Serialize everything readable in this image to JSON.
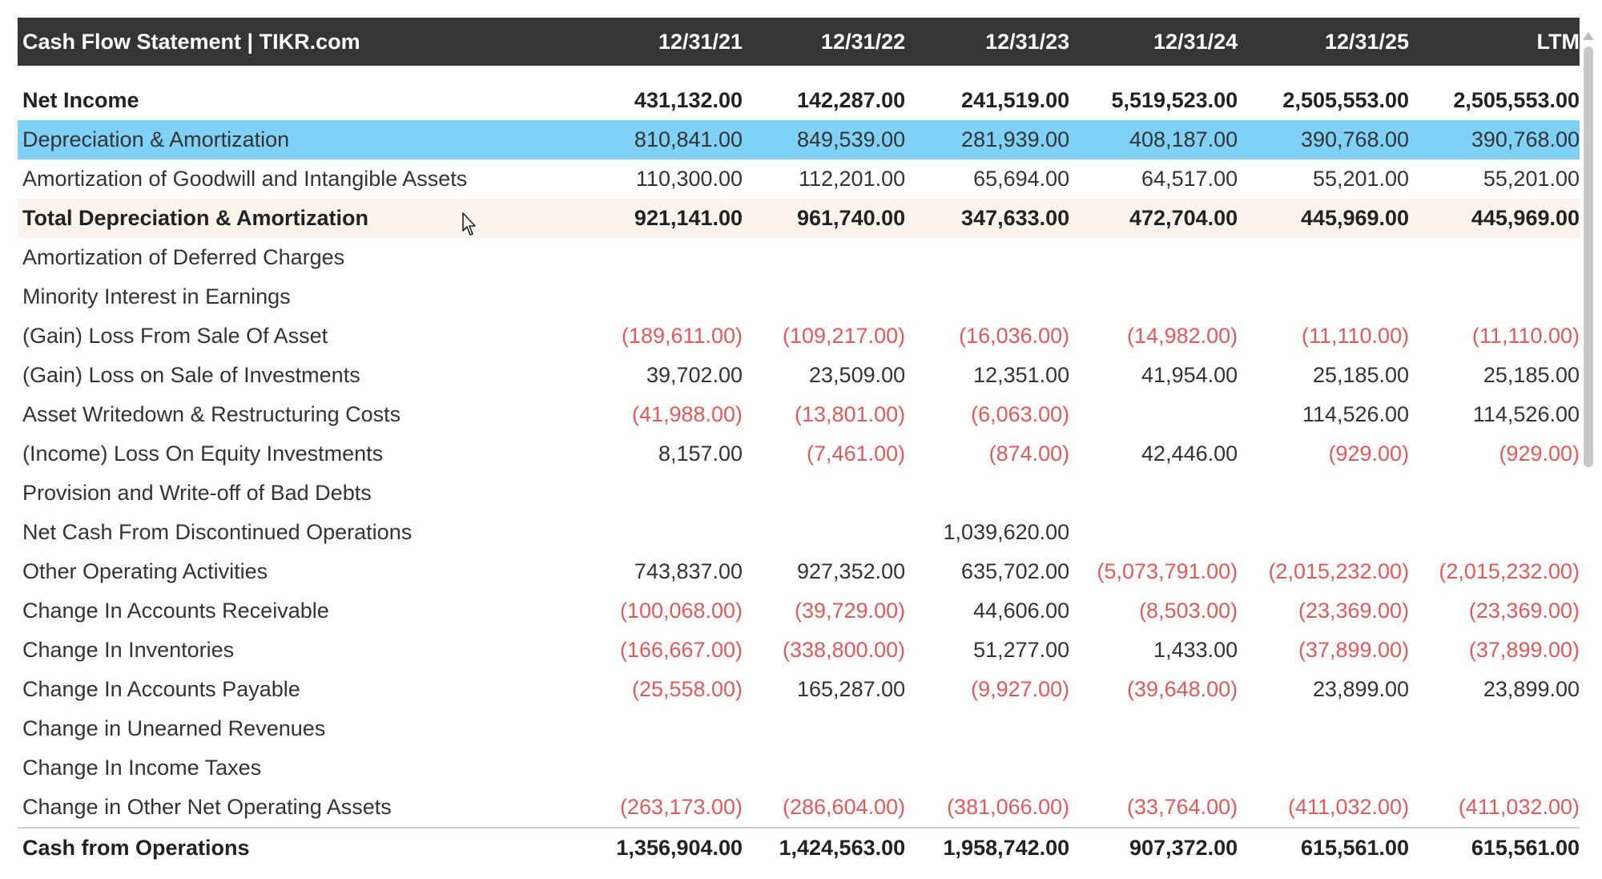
{
  "header": {
    "title": "Cash Flow Statement | TIKR.com",
    "columns": [
      "12/31/21",
      "12/31/22",
      "12/31/23",
      "12/31/24",
      "12/31/25",
      "LTM"
    ]
  },
  "rows": [
    {
      "label": "Net Income",
      "values": [
        "431,132.00",
        "142,287.00",
        "241,519.00",
        "5,519,523.00",
        "2,505,553.00",
        "2,505,553.00"
      ],
      "style": "bold"
    },
    {
      "label": "Depreciation & Amortization",
      "values": [
        "810,841.00",
        "849,539.00",
        "281,939.00",
        "408,187.00",
        "390,768.00",
        "390,768.00"
      ],
      "style": "highlight"
    },
    {
      "label": "Amortization of Goodwill and Intangible Assets",
      "values": [
        "110,300.00",
        "112,201.00",
        "65,694.00",
        "64,517.00",
        "55,201.00",
        "55,201.00"
      ],
      "style": ""
    },
    {
      "label": "Total Depreciation & Amortization",
      "values": [
        "921,141.00",
        "961,740.00",
        "347,633.00",
        "472,704.00",
        "445,969.00",
        "445,969.00"
      ],
      "style": "subtotal"
    },
    {
      "label": "Amortization of Deferred Charges",
      "values": [
        "",
        "",
        "",
        "",
        "",
        ""
      ],
      "style": ""
    },
    {
      "label": "Minority Interest in Earnings",
      "values": [
        "",
        "",
        "",
        "",
        "",
        ""
      ],
      "style": ""
    },
    {
      "label": "(Gain) Loss From Sale Of Asset",
      "values": [
        "(189,611.00)",
        "(109,217.00)",
        "(16,036.00)",
        "(14,982.00)",
        "(11,110.00)",
        "(11,110.00)"
      ],
      "style": ""
    },
    {
      "label": "(Gain) Loss on Sale of Investments",
      "values": [
        "39,702.00",
        "23,509.00",
        "12,351.00",
        "41,954.00",
        "25,185.00",
        "25,185.00"
      ],
      "style": ""
    },
    {
      "label": "Asset Writedown & Restructuring Costs",
      "values": [
        "(41,988.00)",
        "(13,801.00)",
        "(6,063.00)",
        "",
        "114,526.00",
        "114,526.00"
      ],
      "style": ""
    },
    {
      "label": "(Income) Loss On Equity Investments",
      "values": [
        "8,157.00",
        "(7,461.00)",
        "(874.00)",
        "42,446.00",
        "(929.00)",
        "(929.00)"
      ],
      "style": ""
    },
    {
      "label": "Provision and Write-off of Bad Debts",
      "values": [
        "",
        "",
        "",
        "",
        "",
        ""
      ],
      "style": ""
    },
    {
      "label": "Net Cash From Discontinued Operations",
      "values": [
        "",
        "",
        "1,039,620.00",
        "",
        "",
        ""
      ],
      "style": ""
    },
    {
      "label": "Other Operating Activities",
      "values": [
        "743,837.00",
        "927,352.00",
        "635,702.00",
        "(5,073,791.00)",
        "(2,015,232.00)",
        "(2,015,232.00)"
      ],
      "style": ""
    },
    {
      "label": "Change In Accounts Receivable",
      "values": [
        "(100,068.00)",
        "(39,729.00)",
        "44,606.00",
        "(8,503.00)",
        "(23,369.00)",
        "(23,369.00)"
      ],
      "style": ""
    },
    {
      "label": "Change In Inventories",
      "values": [
        "(166,667.00)",
        "(338,800.00)",
        "51,277.00",
        "1,433.00",
        "(37,899.00)",
        "(37,899.00)"
      ],
      "style": ""
    },
    {
      "label": "Change In Accounts Payable",
      "values": [
        "(25,558.00)",
        "165,287.00",
        "(9,927.00)",
        "(39,648.00)",
        "23,899.00",
        "23,899.00"
      ],
      "style": ""
    },
    {
      "label": "Change in Unearned Revenues",
      "values": [
        "",
        "",
        "",
        "",
        "",
        ""
      ],
      "style": ""
    },
    {
      "label": "Change In Income Taxes",
      "values": [
        "",
        "",
        "",
        "",
        "",
        ""
      ],
      "style": ""
    },
    {
      "label": "Change in Other Net Operating Assets",
      "values": [
        "(263,173.00)",
        "(286,604.00)",
        "(381,066.00)",
        "(33,764.00)",
        "(411,032.00)",
        "(411,032.00)"
      ],
      "style": ""
    },
    {
      "label": "Cash from Operations",
      "values": [
        "1,356,904.00",
        "1,424,563.00",
        "1,958,742.00",
        "907,372.00",
        "615,561.00",
        "615,561.00"
      ],
      "style": "bold-total"
    }
  ],
  "colors": {
    "header_bg": "#333537",
    "highlight_bg": "#7fd1f7",
    "subtotal_bg": "#fbf3ec",
    "negative": "#e05a5a"
  },
  "icons": {
    "cursor": "mouse-pointer-icon",
    "scroll": "scroll-up-arrow-icon"
  }
}
